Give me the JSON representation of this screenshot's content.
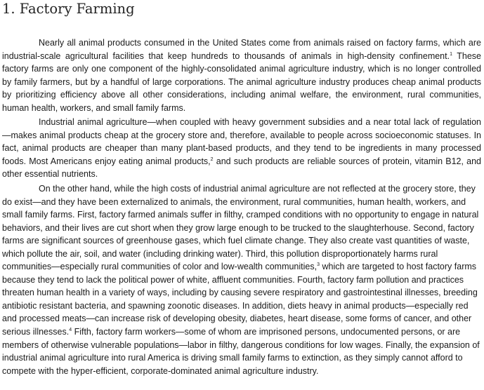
{
  "section": {
    "heading": "1. Factory Farming"
  },
  "paragraphs": [
    {
      "segments": [
        {
          "text": "Nearly all animal products consumed in the United States come from animals raised on factory farms, which are industrial-scale agricultural facilities that keep hundreds to thousands of animals in high-density confinement."
        },
        {
          "note": "1"
        },
        {
          "text": " These factory farms are only one component of the highly-consolidated animal agriculture industry, which is no longer controlled by family farmers, but by a handful of large corporations. The animal agriculture industry produces cheap animal products by prioritizing efficiency above all other considerations, including animal welfare, the environment, rural communities, human health, workers, and small family farms."
        }
      ]
    },
    {
      "segments": [
        {
          "text": "Industrial animal agriculture—when coupled with heavy government subsidies and a near total lack of regulation—makes animal products cheap at the grocery store and, therefore, available to people across socioeconomic statuses. In fact, animal products are cheaper than many plant-based products, and they tend to be ingredients in many processed foods. Most Americans enjoy eating animal products,"
        },
        {
          "note": "2"
        },
        {
          "text": " and such products are reliable sources of protein, vitamin B12, and other essential nutrients."
        }
      ]
    },
    {
      "segments": [
        {
          "text": "On the other hand, while the high costs of industrial animal agriculture are not reflected at the grocery store, they do exist—and they have been externalized to animals, the environment, rural communities, human health, workers, and small family farms. First, factory farmed animals suffer in filthy, cramped conditions with no opportunity to engage in natural behaviors, and their lives are cut short when they grow large enough to be trucked to the slaughterhouse. Second, factory farms are significant sources of greenhouse gases, which fuel climate change. They also create vast quantities of waste, which pollute the air, soil, and water (including drinking water). Third, this pollution disproportionately harms rural communities—especially rural communities of color and low-wealth communities,"
        },
        {
          "note": "3"
        },
        {
          "text": " which are targeted to host factory farms because they tend to lack the political power of white, affluent communities. Fourth, factory farm pollution and practices threaten human health in a variety of ways, including by causing severe respiratory and gastrointestinal illnesses, breeding antibiotic resistant bacteria, and spawning zoonotic diseases. In addition, diets heavy in animal products—especially red and processed meats—can increase risk of developing obesity, diabetes, heart disease, some forms of cancer, and other serious illnesses."
        },
        {
          "note": "4"
        },
        {
          "text": " Fifth, factory farm workers—some of whom are imprisoned persons, undocumented persons, or are members of otherwise vulnerable populations—labor in filthy, dangerous conditions for low wages. Finally, the expansion of industrial animal agriculture into rural America is driving small family farms to extinction, as they simply cannot afford to compete with the hyper-efficient, corporate-dominated animal agriculture industry."
        }
      ]
    }
  ]
}
